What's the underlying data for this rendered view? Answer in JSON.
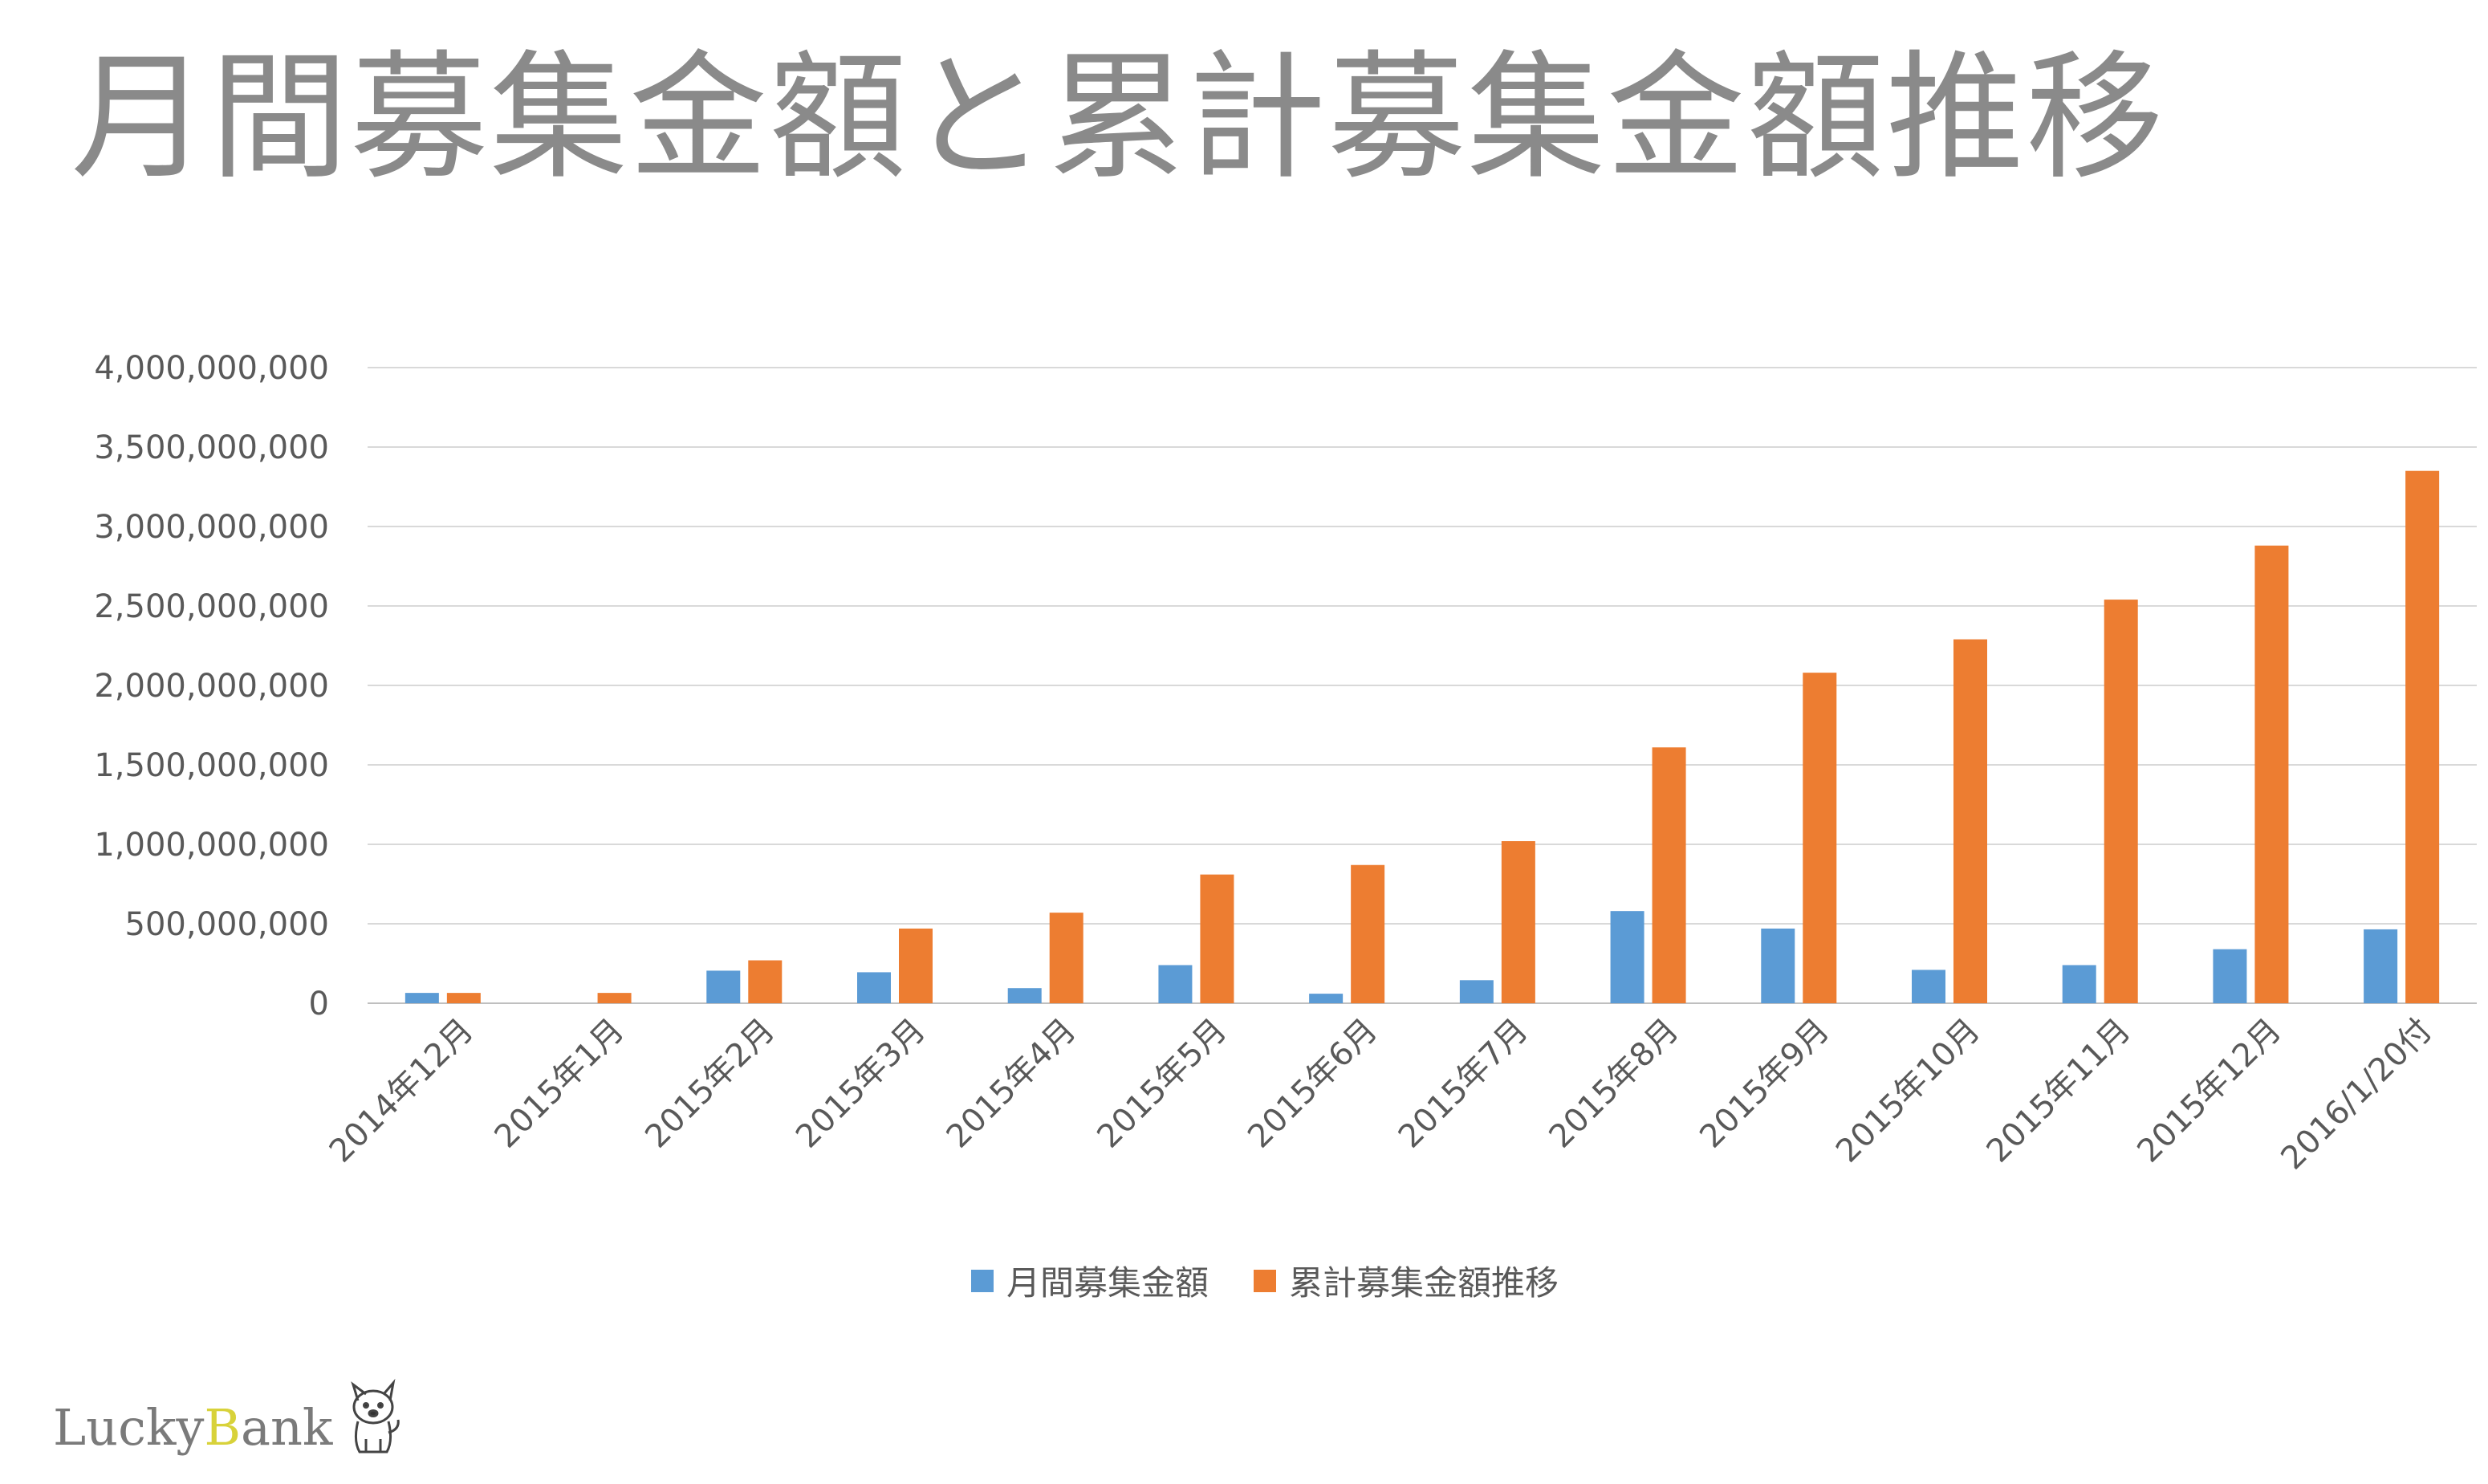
{
  "title": "月間募集金額と累計募集金額推移",
  "colors": {
    "monthly": "#5b9bd5",
    "cumulative": "#ed7d31",
    "grid": "#d9d9d9",
    "axis": "#bfbfbf"
  },
  "legend": {
    "monthly": "月間募集金額",
    "cumulative": "累計募集金額推移",
    "placement": "bottom-center"
  },
  "logo": {
    "text_1": "Luck",
    "text_2": "y ",
    "text_3": "B",
    "text_4": "ank",
    "mark": "dog-mascot-icon"
  },
  "chart_data": {
    "type": "bar",
    "categories": [
      "2014年12月",
      "2015年1月",
      "2015年2月",
      "2015年3月",
      "2015年4月",
      "2015年5月",
      "2015年6月",
      "2015年7月",
      "2015年8月",
      "2015年9月",
      "2015年10月",
      "2015年11月",
      "2015年12月",
      "2016/1/20付"
    ],
    "series": [
      {
        "name": "月間募集金額",
        "values": [
          65000000,
          0,
          205000000,
          195000000,
          95000000,
          240000000,
          60000000,
          145000000,
          580000000,
          470000000,
          210000000,
          240000000,
          340000000,
          465000000
        ]
      },
      {
        "name": "累計募集金額推移",
        "values": [
          65000000,
          65000000,
          270000000,
          470000000,
          570000000,
          810000000,
          870000000,
          1020000000,
          1610000000,
          2080000000,
          2290000000,
          2540000000,
          2880000000,
          3350000000
        ]
      }
    ],
    "yticks": [
      "0",
      "500,000,000",
      "1,000,000,000",
      "1,500,000,000",
      "2,000,000,000",
      "2,500,000,000",
      "3,000,000,000",
      "3,500,000,000",
      "4,000,000,000"
    ],
    "ylim": [
      0,
      4000000000
    ],
    "grid": true,
    "xlabel": "",
    "ylabel": ""
  }
}
